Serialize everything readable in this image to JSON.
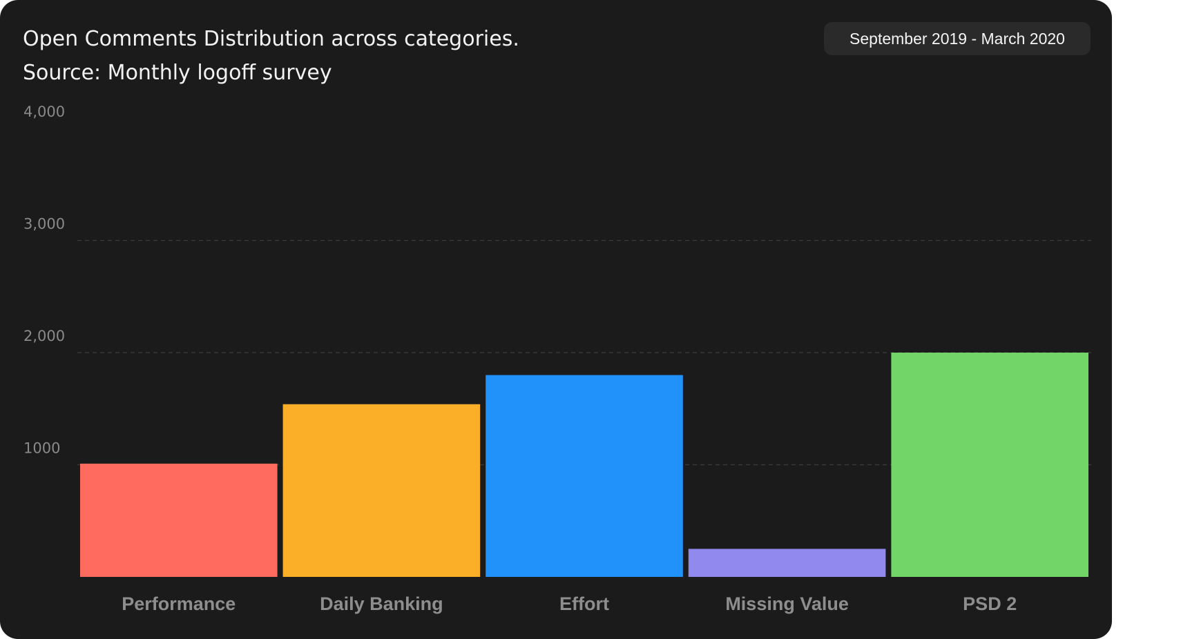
{
  "header": {
    "title_line1": "Open Comments Distribution across categories.",
    "title_line2": "Source: Monthly logoff survey",
    "date_range": "September 2019 - March 2020"
  },
  "chart_data": {
    "type": "bar",
    "title": "Open Comments Distribution across categories.",
    "subtitle": "Source: Monthly logoff survey",
    "categories": [
      "Performance",
      "Daily Banking",
      "Effort",
      "Missing Value",
      "PSD 2"
    ],
    "values": [
      1010,
      1540,
      1800,
      250,
      2000
    ],
    "colors": [
      "#ff6b5e",
      "#fbae28",
      "#2292fb",
      "#9289ee",
      "#72d567"
    ],
    "y_ticks": [
      {
        "value": 1000,
        "label": "1000"
      },
      {
        "value": 2000,
        "label": "2,000"
      },
      {
        "value": 3000,
        "label": "3,000"
      },
      {
        "value": 4000,
        "label": "4,000"
      }
    ],
    "gridlines": [
      1000,
      2000,
      3000
    ],
    "ylim": [
      0,
      4000
    ],
    "grid": true,
    "grid_style": "dashed",
    "legend": "none",
    "xlabel": "",
    "ylabel": ""
  }
}
